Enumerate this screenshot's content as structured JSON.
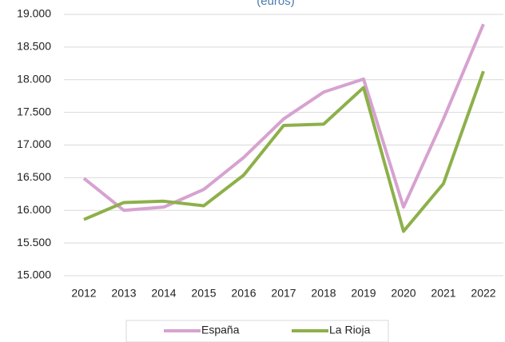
{
  "chart_data": {
    "type": "line",
    "title": "(euros)",
    "categories": [
      "2012",
      "2013",
      "2014",
      "2015",
      "2016",
      "2017",
      "2018",
      "2019",
      "2020",
      "2021",
      "2022"
    ],
    "series": [
      {
        "name": "España",
        "color": "#d6a2d0",
        "values": [
          16490,
          16000,
          16050,
          16320,
          16810,
          17400,
          17810,
          18010,
          16050,
          17400,
          18850
        ]
      },
      {
        "name": "La Rioja",
        "color": "#8db04a",
        "values": [
          15860,
          16120,
          16140,
          16070,
          16540,
          17300,
          17320,
          17880,
          15680,
          16410,
          18130
        ]
      }
    ],
    "ylim": [
      15000,
      19000
    ],
    "yticks": [
      {
        "value": 15000,
        "label": "15.000"
      },
      {
        "value": 15500,
        "label": "15.500"
      },
      {
        "value": 16000,
        "label": "16.000"
      },
      {
        "value": 16500,
        "label": "16.500"
      },
      {
        "value": 17000,
        "label": "17.000"
      },
      {
        "value": 17500,
        "label": "17.500"
      },
      {
        "value": 18000,
        "label": "18.000"
      },
      {
        "value": 18500,
        "label": "18.500"
      },
      {
        "value": 19000,
        "label": "19.000"
      }
    ],
    "grid": true,
    "legend": "bottom"
  }
}
